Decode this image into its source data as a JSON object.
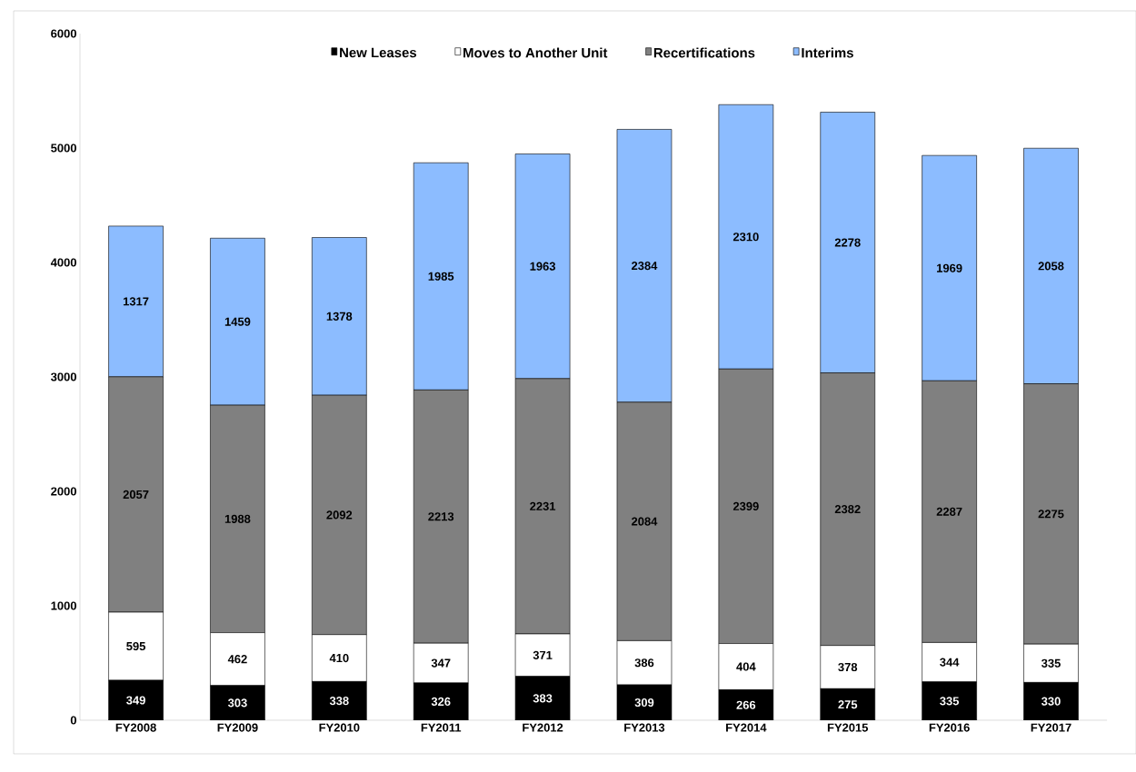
{
  "chart_data": {
    "type": "bar",
    "stacked": true,
    "categories": [
      "FY2008",
      "FY2009",
      "FY2010",
      "FY2011",
      "FY2012",
      "FY2013",
      "FY2014",
      "FY2015",
      "FY2016",
      "FY2017"
    ],
    "series": [
      {
        "name": "New Leases",
        "color": "#000000",
        "values": [
          349,
          303,
          338,
          326,
          383,
          309,
          266,
          275,
          335,
          330
        ]
      },
      {
        "name": "Moves to Another Unit",
        "color": "#ffffff",
        "values": [
          595,
          462,
          410,
          347,
          371,
          386,
          404,
          378,
          344,
          335
        ]
      },
      {
        "name": "Recertifications",
        "color": "#808080",
        "values": [
          2057,
          1988,
          2092,
          2213,
          2231,
          2084,
          2399,
          2382,
          2287,
          2275
        ]
      },
      {
        "name": "Interims",
        "color": "#8cbcff",
        "values": [
          1317,
          1459,
          1378,
          1985,
          1963,
          2384,
          2310,
          2278,
          1969,
          2058
        ]
      }
    ],
    "ylim": [
      0,
      6000
    ],
    "yticks": [
      0,
      1000,
      2000,
      3000,
      4000,
      5000,
      6000
    ],
    "grid": false,
    "legend": "top",
    "data_labels": true
  }
}
